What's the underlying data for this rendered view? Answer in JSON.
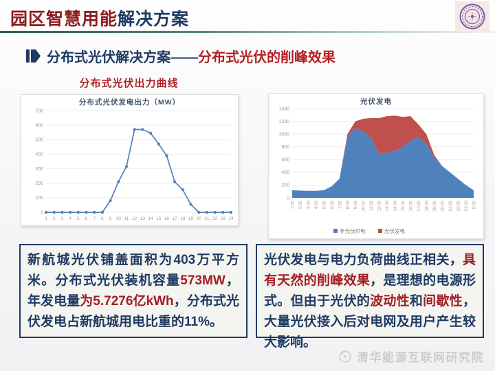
{
  "header": {
    "title_part1": "园区智慧用能",
    "title_part2": "解决方案",
    "logo_name": "tsinghua-university-seal"
  },
  "colors": {
    "title_maroon": "#8e1b1e",
    "navy": "#1f3a63",
    "accent_red": "#b31f24",
    "chart_blue": "#4f81bd",
    "chart_red": "#c0504d"
  },
  "subtitle": {
    "part1": "分布式光伏解决方案——",
    "part2": "分布式光伏的削峰效果"
  },
  "left_section": {
    "caption": "分布式光伏出力曲线"
  },
  "chart_data": [
    {
      "type": "line",
      "title": "分布式光伏发电出力（MW）",
      "categories": [
        "1",
        "2",
        "3",
        "4",
        "5",
        "6",
        "7",
        "8",
        "9",
        "10",
        "11",
        "12",
        "13",
        "14",
        "15",
        "16",
        "17",
        "18",
        "19",
        "20",
        "21",
        "22",
        "23",
        "24"
      ],
      "values": [
        0,
        0,
        0,
        0,
        0,
        0,
        0,
        0,
        80,
        210,
        315,
        570,
        570,
        545,
        470,
        390,
        210,
        155,
        55,
        0,
        0,
        0,
        0,
        0
      ],
      "xlabel": "",
      "ylabel": "",
      "ylim": [
        0,
        700
      ],
      "ytick": 100,
      "color": "#4f81bd",
      "grid": true,
      "legend": false
    },
    {
      "type": "area-stacked",
      "title": "光伏发电",
      "categories": [
        "1:00",
        "2:00",
        "3:00",
        "4:00",
        "5:00",
        "6:00",
        "7:00",
        "8:00",
        "9:00",
        "10:00",
        "11:00",
        "12:00",
        "13:00",
        "14:00",
        "15:00",
        "16:00",
        "17:00",
        "18:00",
        "19:00",
        "20:00",
        "21:00",
        "22:00",
        "23:00",
        "0:00"
      ],
      "series": [
        {
          "name": "非光伏供电",
          "color": "#4f81bd",
          "values": [
            120,
            115,
            110,
            110,
            120,
            180,
            300,
            950,
            1100,
            1040,
            950,
            690,
            710,
            740,
            790,
            900,
            950,
            850,
            630,
            500,
            400,
            300,
            200,
            120
          ]
        },
        {
          "name": "光伏发电",
          "color": "#c0504d",
          "values": [
            0,
            0,
            0,
            0,
            0,
            0,
            0,
            50,
            100,
            200,
            300,
            560,
            570,
            550,
            480,
            380,
            200,
            150,
            40,
            0,
            0,
            0,
            0,
            0
          ]
        }
      ],
      "xlabel": "",
      "ylabel": "",
      "ylim": [
        0,
        1400
      ],
      "ytick": 200,
      "rotate_x": true,
      "grid": true,
      "legend": "bottom"
    }
  ],
  "left_box": {
    "segments": [
      {
        "text": "新航城光伏铺盖面积为403万平方米。分布式光伏装机容量"
      },
      {
        "text": "573MW",
        "color": "#a21e22"
      },
      {
        "text": "，年发电量"
      },
      {
        "text": "为5.7276亿kWh",
        "color": "#a21e22"
      },
      {
        "text": "，分布式光伏发电占新航城用电比重的11%。"
      }
    ]
  },
  "right_box": {
    "segments": [
      {
        "text": "光伏发电与电力负荷曲线正相关，"
      },
      {
        "text": "具有天然的削峰效果",
        "color": "#a21e22"
      },
      {
        "text": "，是理想的电源形式。但由于光伏的"
      },
      {
        "text": "波动性",
        "color": "#a21e22"
      },
      {
        "text": "和"
      },
      {
        "text": "间歇性",
        "color": "#a21e22"
      },
      {
        "text": "，大量光伏接入后对电网及用户产生较大影响。"
      }
    ]
  },
  "footer": {
    "org": "清华能源互联网研究院"
  }
}
